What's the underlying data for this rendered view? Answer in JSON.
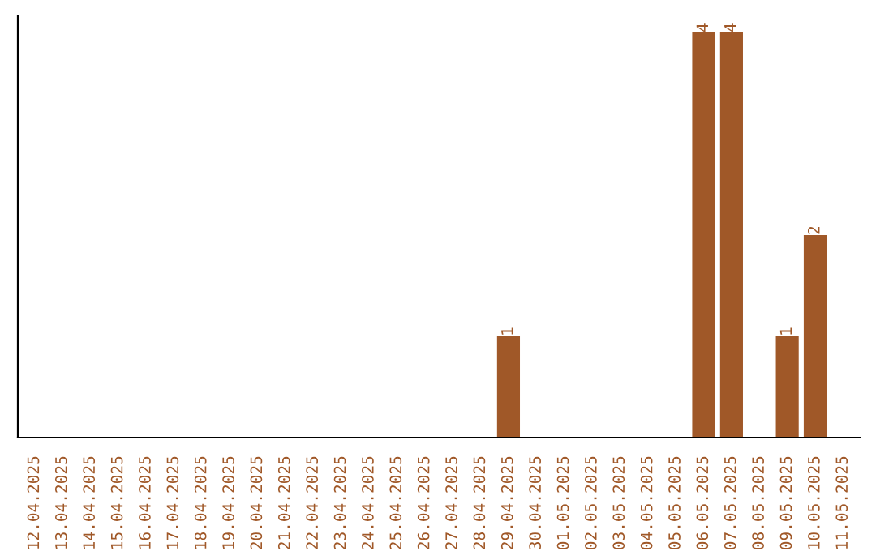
{
  "chart_data": {
    "type": "bar",
    "categories": [
      "12.04.2025",
      "13.04.2025",
      "14.04.2025",
      "15.04.2025",
      "16.04.2025",
      "17.04.2025",
      "18.04.2025",
      "19.04.2025",
      "20.04.2025",
      "21.04.2025",
      "22.04.2025",
      "23.04.2025",
      "24.04.2025",
      "25.04.2025",
      "26.04.2025",
      "27.04.2025",
      "28.04.2025",
      "29.04.2025",
      "30.04.2025",
      "01.05.2025",
      "02.05.2025",
      "03.05.2025",
      "04.05.2025",
      "05.05.2025",
      "06.05.2025",
      "07.05.2025",
      "08.05.2025",
      "09.05.2025",
      "10.05.2025",
      "11.05.2025"
    ],
    "values": [
      null,
      null,
      null,
      null,
      null,
      null,
      null,
      null,
      null,
      null,
      null,
      null,
      null,
      null,
      null,
      null,
      null,
      1,
      null,
      null,
      null,
      null,
      null,
      null,
      4,
      4,
      null,
      1,
      2,
      null
    ],
    "data_labels": true,
    "color": "#a05828",
    "tick_labels": "x",
    "grid": false,
    "legend": false
  }
}
